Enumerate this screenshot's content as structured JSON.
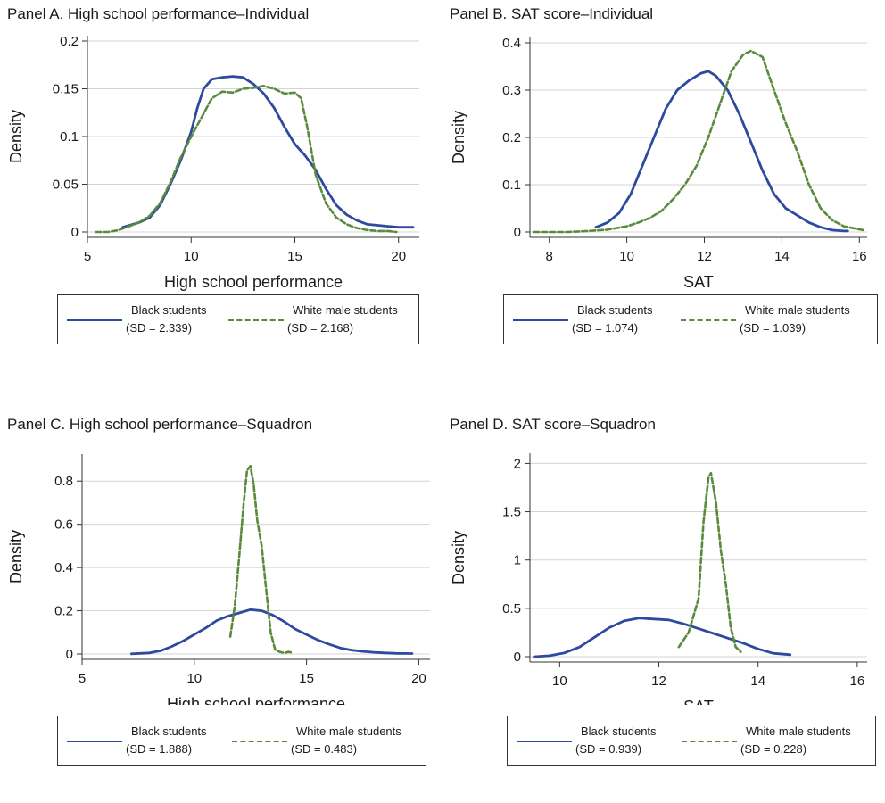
{
  "chart_data": [
    {
      "type": "line",
      "title": "Panel A. High school performance–Individual",
      "xlabel": "High school performance",
      "ylabel": "Density",
      "xlim": [
        5,
        21
      ],
      "ylim": [
        0,
        0.2
      ],
      "xticks": [
        5,
        10,
        15,
        20
      ],
      "xtick_labels": [
        "5",
        "10",
        "15",
        "20"
      ],
      "yticks": [
        0,
        0.05,
        0.1,
        0.15,
        0.2
      ],
      "ytick_labels": [
        "0",
        "0.05",
        "0.1",
        "0.15",
        "0.2"
      ],
      "grid": true,
      "legend_position": "bottom",
      "series": [
        {
          "name": "Black students",
          "sd_label": "(SD = 2.339)",
          "color": "#2e4a9e",
          "dash": "solid",
          "x": [
            6.7,
            7.5,
            8,
            8.5,
            9,
            9.5,
            10,
            10.3,
            10.6,
            11,
            11.5,
            12,
            12.5,
            13,
            13.5,
            14,
            14.5,
            15,
            15.5,
            16,
            16.5,
            17,
            17.5,
            18,
            18.5,
            19,
            19.5,
            20,
            20.5,
            20.7
          ],
          "y": [
            0.005,
            0.01,
            0.015,
            0.028,
            0.05,
            0.075,
            0.105,
            0.13,
            0.15,
            0.16,
            0.162,
            0.163,
            0.162,
            0.155,
            0.145,
            0.13,
            0.11,
            0.092,
            0.08,
            0.065,
            0.045,
            0.028,
            0.018,
            0.012,
            0.008,
            0.007,
            0.006,
            0.005,
            0.005,
            0.005
          ]
        },
        {
          "name": "White male students",
          "sd_label": "(SD = 2.168)",
          "color": "#5a8a3c",
          "dash": "dashed",
          "x": [
            5.4,
            6,
            6.5,
            7,
            7.5,
            8,
            8.5,
            9,
            9.5,
            10,
            10.5,
            11,
            11.5,
            12,
            12.5,
            13,
            13.5,
            14,
            14.5,
            15,
            15.3,
            15.6,
            16,
            16.5,
            17,
            17.5,
            18,
            18.5,
            19,
            19.5,
            19.9
          ],
          "y": [
            0,
            0,
            0.002,
            0.006,
            0.01,
            0.017,
            0.03,
            0.052,
            0.078,
            0.1,
            0.12,
            0.14,
            0.147,
            0.146,
            0.15,
            0.151,
            0.153,
            0.15,
            0.145,
            0.146,
            0.14,
            0.11,
            0.06,
            0.03,
            0.015,
            0.008,
            0.004,
            0.002,
            0.001,
            0.001,
            0
          ]
        }
      ]
    },
    {
      "type": "line",
      "title": "Panel B. SAT score–Individual",
      "xlabel": "SAT",
      "ylabel": "Density",
      "xlim": [
        7.5,
        16.2
      ],
      "ylim": [
        0,
        0.4
      ],
      "xticks": [
        8,
        10,
        12,
        14,
        16
      ],
      "xtick_labels": [
        "8",
        "10",
        "12",
        "14",
        "16"
      ],
      "yticks": [
        0,
        0.1,
        0.2,
        0.3,
        0.4
      ],
      "ytick_labels": [
        "0",
        "0.1",
        "0.2",
        "0.3",
        "0.4"
      ],
      "grid": true,
      "legend_position": "bottom",
      "series": [
        {
          "name": "Black students",
          "sd_label": "(SD = 1.074)",
          "color": "#2e4a9e",
          "dash": "solid",
          "x": [
            9.2,
            9.5,
            9.8,
            10.1,
            10.4,
            10.7,
            11,
            11.3,
            11.6,
            11.9,
            12.1,
            12.3,
            12.6,
            12.9,
            13.2,
            13.5,
            13.8,
            14.1,
            14.4,
            14.7,
            15,
            15.3,
            15.6,
            15.7
          ],
          "y": [
            0.01,
            0.02,
            0.04,
            0.08,
            0.14,
            0.2,
            0.26,
            0.3,
            0.32,
            0.335,
            0.34,
            0.33,
            0.3,
            0.25,
            0.19,
            0.13,
            0.08,
            0.05,
            0.035,
            0.02,
            0.01,
            0.004,
            0.002,
            0.002
          ]
        },
        {
          "name": "White male students",
          "sd_label": "(SD = 1.039)",
          "color": "#5a8a3c",
          "dash": "dashed",
          "x": [
            7.6,
            8,
            8.5,
            9,
            9.5,
            10,
            10.3,
            10.6,
            10.9,
            11.2,
            11.5,
            11.8,
            12.1,
            12.4,
            12.7,
            13,
            13.2,
            13.5,
            13.8,
            14.1,
            14.4,
            14.7,
            15,
            15.3,
            15.6,
            16.1
          ],
          "y": [
            0,
            0,
            0,
            0.002,
            0.005,
            0.012,
            0.02,
            0.03,
            0.045,
            0.07,
            0.1,
            0.14,
            0.2,
            0.27,
            0.34,
            0.375,
            0.383,
            0.37,
            0.3,
            0.23,
            0.17,
            0.1,
            0.05,
            0.025,
            0.012,
            0.004
          ]
        }
      ]
    },
    {
      "type": "line",
      "title": "Panel C. High school performance–Squadron",
      "xlabel": "High school performance",
      "ylabel": "Density",
      "xlim": [
        5,
        20.5
      ],
      "ylim": [
        0,
        0.9
      ],
      "xticks": [
        5,
        10,
        15,
        20
      ],
      "xtick_labels": [
        "5",
        "10",
        "15",
        "20"
      ],
      "yticks": [
        0,
        0.2,
        0.4,
        0.6,
        0.8
      ],
      "ytick_labels": [
        "0",
        "0.2",
        "0.4",
        "0.6",
        "0.8"
      ],
      "grid": true,
      "legend_position": "bottom",
      "series": [
        {
          "name": "Black students",
          "sd_label": "(SD = 1.888)",
          "color": "#2e4a9e",
          "dash": "solid",
          "x": [
            7.2,
            8,
            8.5,
            9,
            9.5,
            10,
            10.5,
            11,
            11.5,
            12,
            12.5,
            13,
            13.5,
            14,
            14.5,
            15,
            15.5,
            16,
            16.5,
            17,
            17.5,
            18,
            18.5,
            19,
            19.7
          ],
          "y": [
            0.001,
            0.005,
            0.015,
            0.035,
            0.06,
            0.09,
            0.12,
            0.155,
            0.175,
            0.19,
            0.205,
            0.2,
            0.18,
            0.15,
            0.115,
            0.09,
            0.065,
            0.045,
            0.028,
            0.018,
            0.012,
            0.008,
            0.005,
            0.003,
            0.002
          ]
        },
        {
          "name": "White male students",
          "sd_label": "(SD = 0.483)",
          "color": "#5a8a3c",
          "dash": "dashed",
          "x": [
            11.6,
            11.8,
            12,
            12.2,
            12.35,
            12.5,
            12.65,
            12.8,
            13,
            13.2,
            13.4,
            13.6,
            13.8,
            14,
            14.2,
            14.4
          ],
          "y": [
            0.08,
            0.22,
            0.45,
            0.7,
            0.85,
            0.87,
            0.78,
            0.62,
            0.5,
            0.3,
            0.1,
            0.02,
            0.01,
            0.005,
            0.01,
            0.005
          ]
        }
      ]
    },
    {
      "type": "line",
      "title": "Panel D. SAT score–Squadron",
      "xlabel": "SAT",
      "ylabel": "Density",
      "xlim": [
        9.4,
        16.2
      ],
      "ylim": [
        0,
        2.05
      ],
      "xticks": [
        10,
        12,
        14,
        16
      ],
      "xtick_labels": [
        "10",
        "12",
        "14",
        "16"
      ],
      "yticks": [
        0,
        0.5,
        1,
        1.5,
        2
      ],
      "ytick_labels": [
        "0",
        "0.5",
        "1",
        "1.5",
        "2"
      ],
      "grid": true,
      "legend_position": "bottom",
      "series": [
        {
          "name": "Black students",
          "sd_label": "(SD = 0.939)",
          "color": "#2e4a9e",
          "dash": "solid",
          "x": [
            9.5,
            9.8,
            10.1,
            10.4,
            10.7,
            11,
            11.3,
            11.6,
            11.9,
            12.2,
            12.5,
            12.8,
            13.1,
            13.4,
            13.7,
            14,
            14.3,
            14.65
          ],
          "y": [
            0,
            0.01,
            0.04,
            0.1,
            0.2,
            0.3,
            0.37,
            0.4,
            0.39,
            0.38,
            0.34,
            0.29,
            0.24,
            0.19,
            0.14,
            0.08,
            0.035,
            0.02
          ]
        },
        {
          "name": "White male students",
          "sd_label": "(SD = 0.228)",
          "color": "#5a8a3c",
          "dash": "dashed",
          "x": [
            12.4,
            12.6,
            12.8,
            12.9,
            13,
            13.05,
            13.15,
            13.25,
            13.35,
            13.45,
            13.55,
            13.65
          ],
          "y": [
            0.1,
            0.25,
            0.6,
            1.4,
            1.85,
            1.9,
            1.6,
            1.1,
            0.75,
            0.3,
            0.1,
            0.05
          ]
        }
      ]
    }
  ]
}
